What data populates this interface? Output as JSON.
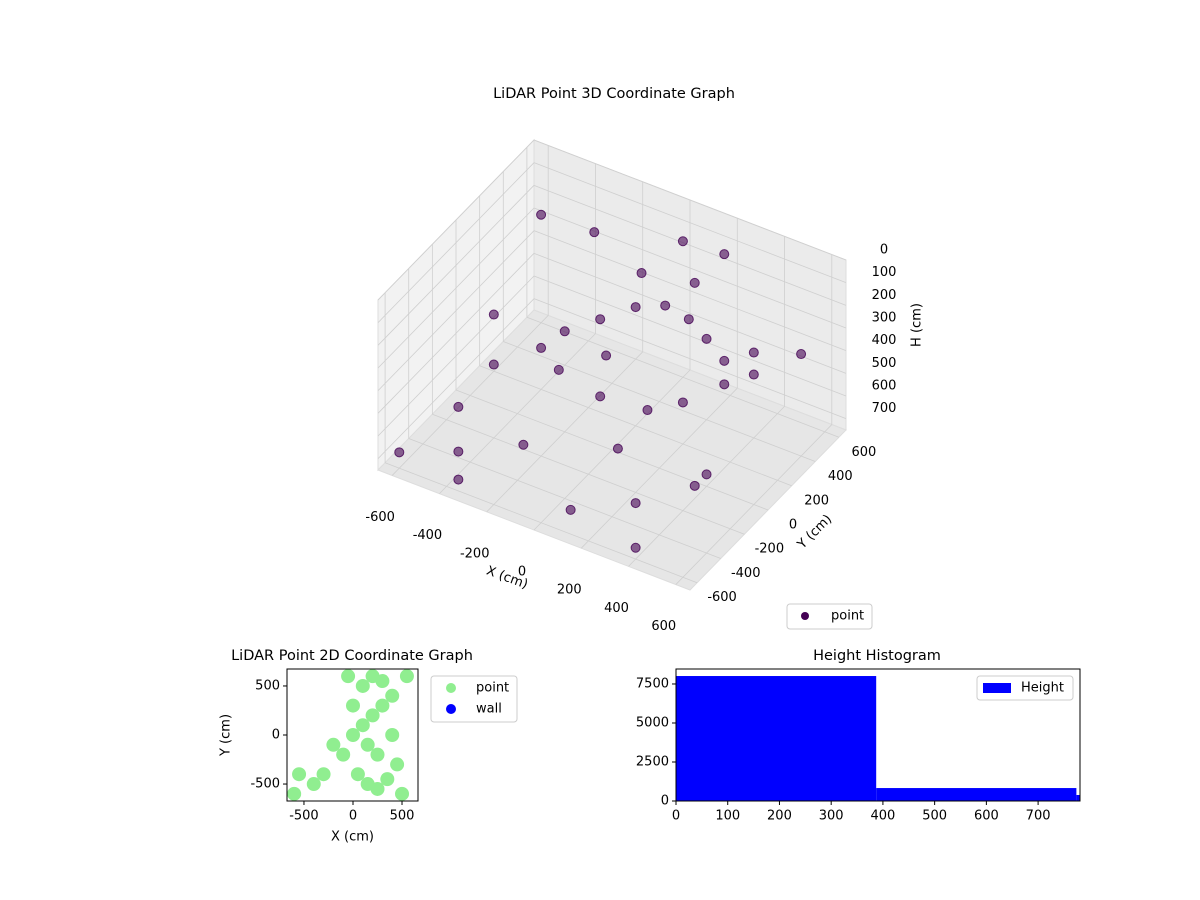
{
  "chart_data": [
    {
      "type": "scatter3d",
      "title": "LiDAR Point 3D Coordinate Graph",
      "xlabel": "X (cm)",
      "ylabel": "Y (cm)",
      "zlabel": "H (cm)",
      "xlim": [
        -660,
        660
      ],
      "ylim": [
        -660,
        660
      ],
      "zlim": [
        0,
        750
      ],
      "z_inverted": true,
      "xticks": [
        -600,
        -400,
        -200,
        0,
        200,
        400,
        600
      ],
      "yticks": [
        -600,
        -400,
        -200,
        0,
        200,
        400,
        600
      ],
      "zticks": [
        0,
        100,
        200,
        300,
        400,
        500,
        600,
        700
      ],
      "grid": true,
      "legend": "lower right",
      "series": [
        {
          "name": "point",
          "color": "#440154",
          "x": [
            -250,
            -150,
            -50,
            50,
            150,
            250,
            350,
            400,
            -300,
            -200,
            0,
            200,
            300,
            450,
            -100,
            100,
            -500,
            -400,
            -600,
            500,
            600,
            -550,
            300,
            -350,
            100,
            -200,
            400,
            0,
            550,
            -450,
            200,
            -600,
            600,
            -300,
            150,
            -50
          ],
          "y": [
            100,
            200,
            300,
            350,
            350,
            300,
            250,
            150,
            0,
            -50,
            -100,
            -100,
            0,
            300,
            450,
            500,
            -300,
            -500,
            200,
            -200,
            400,
            500,
            -400,
            -600,
            -550,
            -350,
            -600,
            600,
            100,
            -100,
            550,
            -600,
            -500,
            450,
            -250,
            50
          ],
          "z": [
            380,
            340,
            300,
            280,
            300,
            320,
            350,
            380,
            420,
            450,
            460,
            440,
            420,
            300,
            250,
            240,
            600,
            650,
            500,
            550,
            300,
            200,
            650,
            700,
            680,
            620,
            700,
            150,
            250,
            500,
            100,
            680,
            400,
            150,
            550,
            380
          ]
        }
      ]
    },
    {
      "type": "scatter",
      "title": "LiDAR Point 2D Coordinate Graph",
      "xlabel": "X (cm)",
      "ylabel": "Y (cm)",
      "xlim": [
        -673,
        663
      ],
      "ylim": [
        -673,
        673
      ],
      "xticks": [
        -500,
        0,
        500
      ],
      "yticks": [
        -500,
        0,
        500
      ],
      "legend": "outside upper right",
      "series": [
        {
          "name": "point",
          "color": "#90ee90",
          "x": [
            0,
            100,
            200,
            300,
            400,
            450,
            -100,
            50,
            150,
            250,
            350,
            -200,
            -300,
            -400,
            -550,
            -600,
            100,
            200,
            300,
            0,
            -50,
            250,
            400,
            500,
            550,
            150
          ],
          "y": [
            0,
            100,
            200,
            300,
            0,
            -300,
            -200,
            -400,
            -500,
            -550,
            -450,
            -100,
            -400,
            -500,
            -400,
            -600,
            500,
            600,
            550,
            300,
            600,
            -200,
            400,
            -600,
            600,
            -100
          ]
        },
        {
          "name": "wall",
          "color": "#0000ff",
          "x": [],
          "y": []
        }
      ]
    },
    {
      "type": "histogram",
      "title": "Height Histogram",
      "name": "Height",
      "color": "#0000ff",
      "bins": [
        0,
        387,
        774,
        781
      ],
      "counts": [
        8010,
        830,
        385
      ],
      "xlim": [
        0,
        781
      ],
      "ylim": [
        0,
        8460
      ],
      "xticks": [
        0,
        100,
        200,
        300,
        400,
        500,
        600,
        700
      ],
      "yticks": [
        0,
        2500,
        5000,
        7500
      ],
      "legend": "upper right"
    }
  ]
}
